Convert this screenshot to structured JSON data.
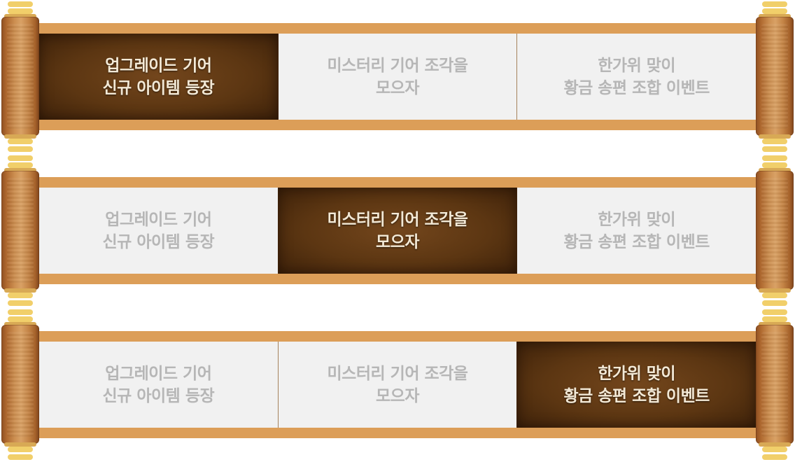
{
  "bands": [
    {
      "active": 0,
      "tabs": [
        {
          "line1": "업그레이드 기어",
          "line2": "신규 아이템 등장"
        },
        {
          "line1": "미스터리 기어 조각을",
          "line2": "모으자"
        },
        {
          "line1": "한가위 맞이",
          "line2": "황금 송편 조합 이벤트"
        }
      ]
    },
    {
      "active": 1,
      "tabs": [
        {
          "line1": "업그레이드 기어",
          "line2": "신규 아이템 등장"
        },
        {
          "line1": "미스터리 기어 조각을",
          "line2": "모으자"
        },
        {
          "line1": "한가위 맞이",
          "line2": "황금 송편 조합 이벤트"
        }
      ]
    },
    {
      "active": 2,
      "tabs": [
        {
          "line1": "업그레이드 기어",
          "line2": "신규 아이템 등장"
        },
        {
          "line1": "미스터리 기어 조각을",
          "line2": "모으자"
        },
        {
          "line1": "한가위 맞이",
          "line2": "황금 송편 조합 이벤트"
        }
      ]
    }
  ],
  "colors": {
    "active_bg": "#5c3612",
    "active_text": "#f3e9d6",
    "inactive_bg": "#f1f1f1",
    "inactive_text": "#b6b6b6",
    "frame": "#dc9e58",
    "roller_knob": "#f1cf6a"
  }
}
